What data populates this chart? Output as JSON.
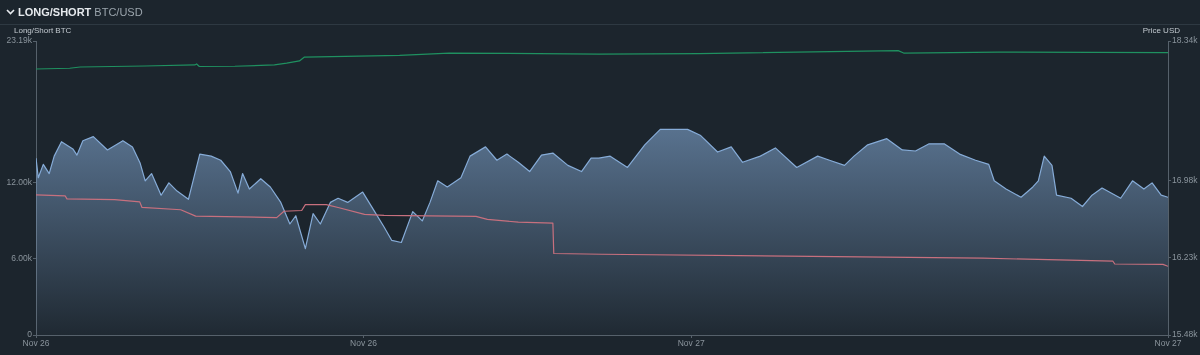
{
  "chart_data": {
    "type": "line",
    "title": "LONG/SHORT BTC/USD",
    "ylabel": "Long/Short BTC",
    "y2label": "Price USD",
    "xlim": [
      "--11-26T00:00",
      "--11-27T17:28"
    ],
    "xticks": [
      {
        "value": "--11-26T00:00",
        "label": "Nov 26"
      },
      {
        "value": "--11-26T12:00",
        "label": "Nov 26"
      },
      {
        "value": "--11-27T00:00",
        "label": "Nov 27"
      },
      {
        "value": "--11-27T17:28",
        "label": "Nov 27"
      }
    ],
    "ylim": [
      0,
      23190
    ],
    "yticks": [
      {
        "value": 0,
        "label": "0"
      },
      {
        "value": 6000,
        "label": "6.00k"
      },
      {
        "value": 12000,
        "label": "12.00k"
      },
      {
        "value": 23190,
        "label": "23.19k"
      }
    ],
    "y2lim": [
      15480,
      18340
    ],
    "y2ticks": [
      {
        "value": 15480,
        "label": "15.48k"
      },
      {
        "value": 16230,
        "label": "16.23k"
      },
      {
        "value": 16980,
        "label": "16.98k"
      },
      {
        "value": 18340,
        "label": "18.34k"
      }
    ],
    "marker": "none",
    "series": [
      {
        "type": "area",
        "axis": "y2",
        "color": "#86acd8",
        "x": [
          "--11-26T00:00",
          "--11-26T00:05",
          "--11-26T00:16",
          "--11-26T00:29",
          "--11-26T00:40",
          "--11-26T00:56",
          "--11-26T01:21",
          "--11-26T01:30",
          "--11-26T01:43",
          "--11-26T02:06",
          "--11-26T02:37",
          "--11-26T03:11",
          "--11-26T03:32",
          "--11-26T03:49",
          "--11-26T04:00",
          "--11-26T04:14",
          "--11-26T04:35",
          "--11-26T04:52",
          "--11-26T05:10",
          "--11-26T05:35",
          "--11-26T06:00",
          "--11-26T06:25",
          "--11-26T06:46",
          "--11-26T07:07",
          "--11-26T07:24",
          "--11-26T07:34",
          "--11-26T07:49",
          "--11-26T08:14",
          "--11-26T08:35",
          "--11-26T08:58",
          "--11-26T09:18",
          "--11-26T09:31",
          "--11-26T09:52",
          "--11-26T10:09",
          "--11-26T10:25",
          "--11-26T10:47",
          "--11-26T11:04",
          "--11-26T11:25",
          "--11-26T11:58",
          "--11-26T12:23",
          "--11-26T12:45",
          "--11-26T13:02",
          "--11-26T13:23",
          "--11-26T13:48",
          "--11-26T14:09",
          "--11-26T14:26",
          "--11-26T14:43",
          "--11-26T15:04",
          "--11-26T15:34",
          "--11-26T15:54",
          "--11-26T16:28",
          "--11-26T16:53",
          "--11-26T17:15",
          "--11-26T17:40",
          "--11-26T18:05",
          "--11-26T18:31",
          "--11-26T18:56",
          "--11-26T19:29",
          "--11-26T19:59",
          "--11-26T20:20",
          "--11-26T20:37",
          "--11-26T21:02",
          "--11-26T21:40",
          "--11-26T22:18",
          "--11-26T22:52",
          "--11-26T23:52",
          "--11-27T00:21",
          "--11-27T00:58",
          "--11-27T01:28",
          "--11-27T01:53",
          "--11-27T02:32",
          "--11-27T03:05",
          "--11-27T03:52",
          "--11-27T04:38",
          "--11-27T05:04",
          "--11-27T05:37",
          "--11-27T05:58",
          "--11-27T06:28",
          "--11-27T07:10",
          "--11-27T07:44",
          "--11-27T08:13",
          "--11-27T08:43",
          "--11-27T09:16",
          "--11-27T09:50",
          "--11-27T10:25",
          "--11-27T10:54",
          "--11-27T11:06",
          "--11-27T11:32",
          "--11-27T12:05",
          "--11-27T12:31",
          "--11-27T12:43",
          "--11-27T12:56",
          "--11-27T13:13",
          "--11-27T13:23",
          "--11-27T13:55",
          "--11-27T14:20",
          "--11-27T14:41",
          "--11-27T15:03",
          "--11-27T15:44",
          "--11-27T16:10",
          "--11-27T16:35",
          "--11-27T16:53",
          "--11-27T17:13",
          "--11-27T17:28"
        ],
        "values": [
          17200,
          17010,
          17140,
          17050,
          17220,
          17360,
          17290,
          17230,
          17370,
          17410,
          17280,
          17370,
          17310,
          17150,
          16980,
          17050,
          16840,
          16960,
          16880,
          16800,
          17240,
          17220,
          17180,
          17070,
          16860,
          17050,
          16900,
          17000,
          16920,
          16770,
          16560,
          16640,
          16320,
          16660,
          16560,
          16770,
          16810,
          16770,
          16870,
          16690,
          16530,
          16400,
          16380,
          16680,
          16590,
          16770,
          16980,
          16920,
          17010,
          17220,
          17310,
          17180,
          17240,
          17160,
          17070,
          17230,
          17250,
          17130,
          17070,
          17200,
          17200,
          17220,
          17110,
          17330,
          17480,
          17480,
          17420,
          17260,
          17310,
          17160,
          17220,
          17300,
          17110,
          17220,
          17180,
          17130,
          17220,
          17330,
          17390,
          17280,
          17270,
          17340,
          17340,
          17240,
          17180,
          17140,
          16980,
          16900,
          16820,
          16920,
          16980,
          17220,
          17130,
          16840,
          16810,
          16730,
          16840,
          16910,
          16810,
          16980,
          16900,
          16960,
          16840,
          16820
        ]
      },
      {
        "color": "#1f9160",
        "x": [
          "--11-26T00:00",
          "--11-26T01:14",
          "--11-26T01:37",
          "--11-26T03:59",
          "--11-26T05:49",
          "--11-26T05:53",
          "--11-26T05:59",
          "--11-26T07:17",
          "--11-26T08:44",
          "--11-26T09:11",
          "--11-26T09:39",
          "--11-26T09:50",
          "--11-26T13:19",
          "--11-26T15:08",
          "--11-26T20:37",
          "--11-27T00:17",
          "--11-27T07:35",
          "--11-27T07:47",
          "--11-27T11:15",
          "--11-27T17:28"
        ],
        "values": [
          20980,
          21040,
          21140,
          21220,
          21300,
          21380,
          21180,
          21200,
          21300,
          21440,
          21620,
          21920,
          22060,
          22240,
          22160,
          22200,
          22430,
          22240,
          22320,
          22270
        ]
      },
      {
        "color": "#c7707e",
        "x": [
          "--11-26T00:00",
          "--11-26T01:04",
          "--11-26T01:08",
          "--11-26T02:53",
          "--11-26T03:48",
          "--11-26T03:53",
          "--11-26T05:18",
          "--11-26T05:51",
          "--11-26T08:49",
          "--11-26T09:05",
          "--11-26T09:44",
          "--11-26T09:52",
          "--11-26T10:38",
          "--11-26T11:04",
          "--11-26T12:02",
          "--11-26T12:45",
          "--11-26T16:07",
          "--11-26T16:32",
          "--11-26T17:40",
          "--11-26T18:56",
          "--11-26T18:58",
          "--11-26T20:44",
          "--11-27T10:41",
          "--11-27T15:27",
          "--11-27T15:31",
          "--11-27T17:17",
          "--11-27T17:28"
        ],
        "values": [
          11050,
          10980,
          10740,
          10680,
          10500,
          10060,
          9880,
          9380,
          9260,
          9760,
          9820,
          10280,
          10280,
          10060,
          9520,
          9440,
          9360,
          9120,
          8900,
          8830,
          6430,
          6370,
          6060,
          5820,
          5600,
          5570,
          5420
        ]
      }
    ]
  }
}
